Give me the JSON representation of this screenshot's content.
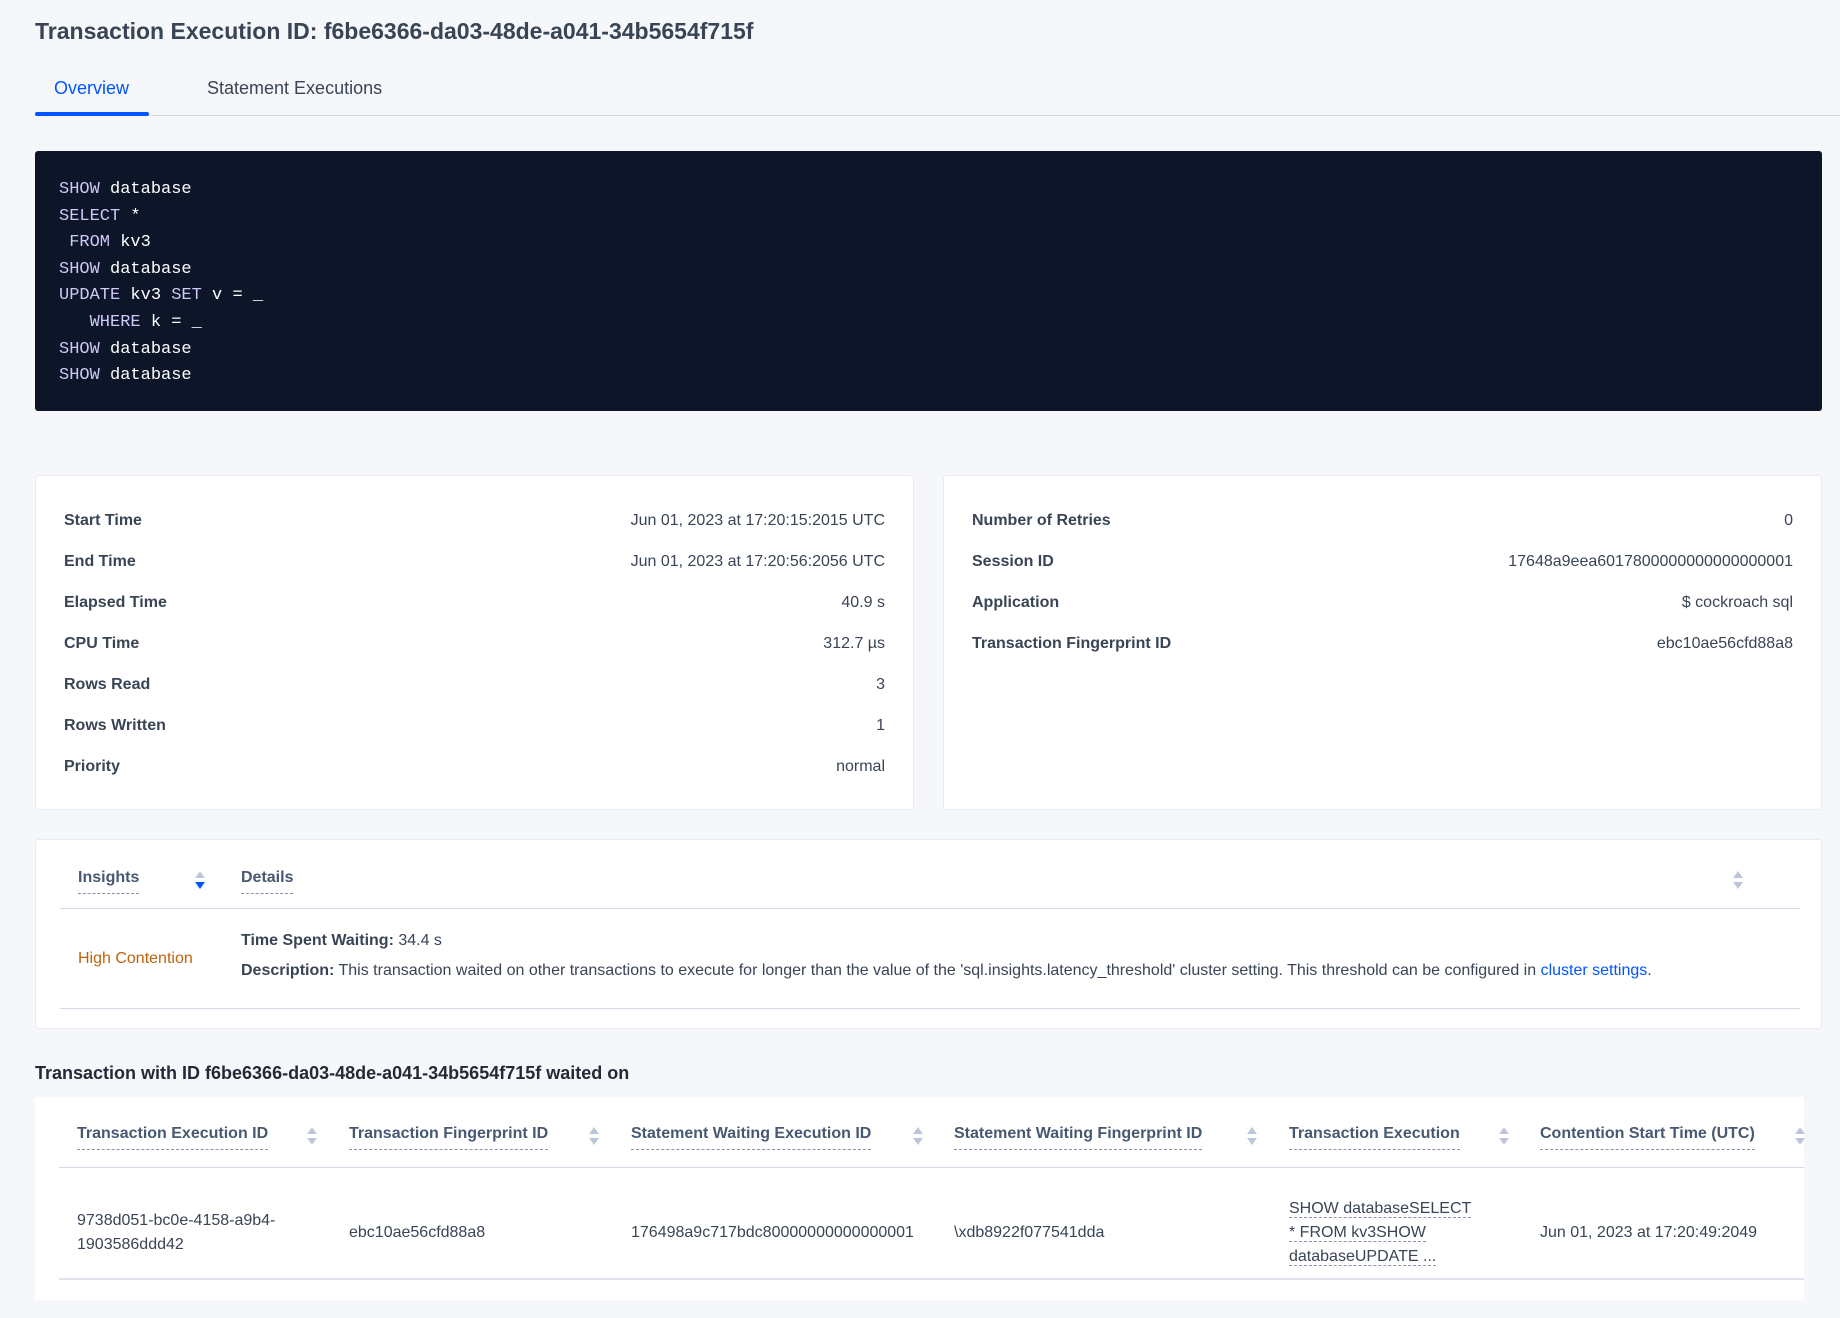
{
  "title": "Transaction Execution ID: f6be6366-da03-48de-a041-34b5654f715f",
  "tabs": [
    {
      "label": "Overview",
      "active": true
    },
    {
      "label": "Statement Executions",
      "active": false
    }
  ],
  "sql": [
    [
      {
        "k": "SHOW"
      },
      {
        "t": " database"
      }
    ],
    [
      {
        "k": "SELECT"
      },
      {
        "t": " *"
      }
    ],
    [
      {
        "t": " "
      },
      {
        "k": "FROM"
      },
      {
        "t": " kv3"
      }
    ],
    [
      {
        "k": "SHOW"
      },
      {
        "t": " database"
      }
    ],
    [
      {
        "k": "UPDATE"
      },
      {
        "t": " kv3 "
      },
      {
        "k": "SET"
      },
      {
        "t": " v = _"
      }
    ],
    [
      {
        "t": "   "
      },
      {
        "k": "WHERE"
      },
      {
        "t": " k = _"
      }
    ],
    [
      {
        "k": "SHOW"
      },
      {
        "t": " database"
      }
    ],
    [
      {
        "k": "SHOW"
      },
      {
        "t": " database"
      }
    ]
  ],
  "details_left": [
    {
      "label": "Start Time",
      "value": "Jun 01, 2023 at 17:20:15:2015 UTC"
    },
    {
      "label": "End Time",
      "value": "Jun 01, 2023 at 17:20:56:2056 UTC"
    },
    {
      "label": "Elapsed Time",
      "value": "40.9 s"
    },
    {
      "label": "CPU Time",
      "value": "312.7 µs"
    },
    {
      "label": "Rows Read",
      "value": "3"
    },
    {
      "label": "Rows Written",
      "value": "1"
    },
    {
      "label": "Priority",
      "value": "normal"
    }
  ],
  "details_right": [
    {
      "label": "Number of Retries",
      "value": "0"
    },
    {
      "label": "Session ID",
      "value": "17648a9eea6017800000000000000001"
    },
    {
      "label": "Application",
      "value": "$ cockroach sql"
    },
    {
      "label": "Transaction Fingerprint ID",
      "value": "ebc10ae56cfd88a8",
      "link": true
    }
  ],
  "insights": {
    "headers": {
      "insights": "Insights",
      "details": "Details"
    },
    "row": {
      "insight": "High Contention",
      "time_label": "Time Spent Waiting:",
      "time_value": " 34.4 s",
      "desc_label": "Description:",
      "desc_text": " This transaction waited on other transactions to execute for longer than the value of the 'sql.insights.latency_threshold' cluster setting. This threshold can be configured in ",
      "desc_link": "cluster settings",
      "desc_end": "."
    },
    "colors": {
      "insight": "#c0620b",
      "link": "#0055ff"
    }
  },
  "waited_on": {
    "heading": "Transaction with ID f6be6366-da03-48de-a041-34b5654f715f waited on",
    "columns": [
      "Transaction Execution ID",
      "Transaction Fingerprint ID",
      "Statement Waiting Execution ID",
      "Statement Waiting Fingerprint ID",
      "Transaction Execution",
      "Contention Start Time (UTC)"
    ],
    "rows": [
      [
        "9738d051-bc0e-4158-a9b4-1903586ddd42",
        "ebc10ae56cfd88a8",
        "176498a9c717bdc80000000000000001",
        "\\xdb8922f077541dda",
        "SHOW databaseSELECT * FROM kv3SHOW databaseUPDATE ...",
        "Jun 01, 2023 at 17:20:49:2049"
      ]
    ]
  }
}
